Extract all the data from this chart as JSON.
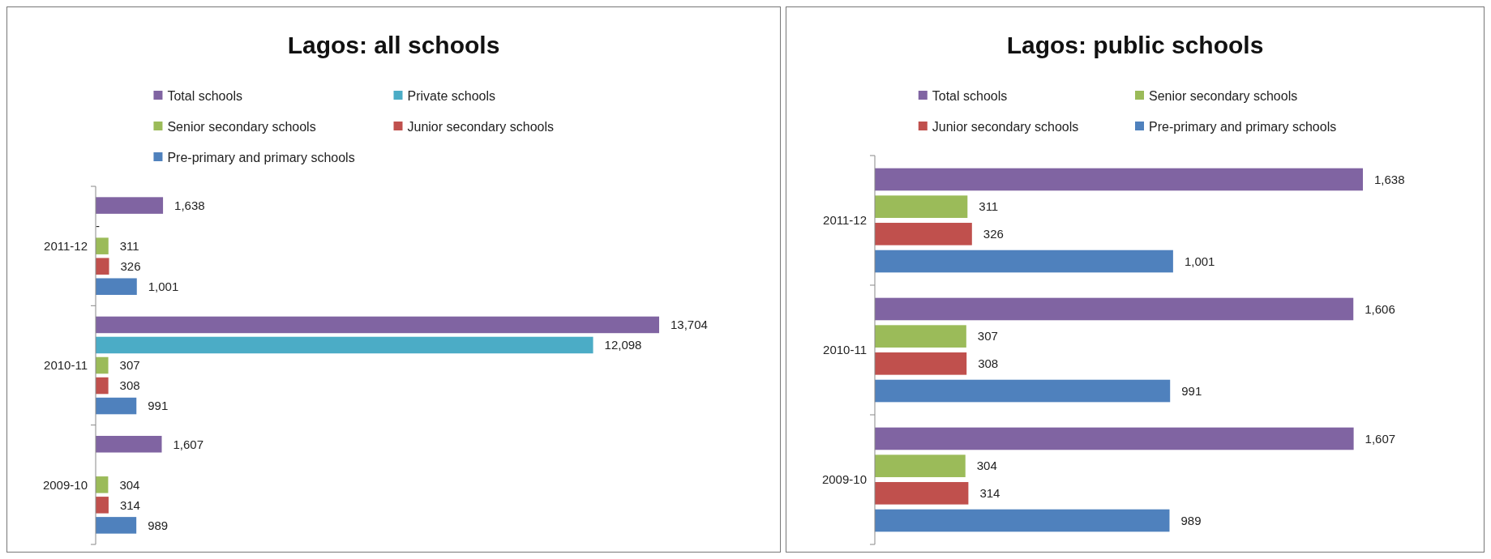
{
  "chart_data": [
    {
      "type": "bar",
      "orientation": "horizontal",
      "title": "Lagos: all schools",
      "categories": [
        "2011-12",
        "2010-11",
        "2009-10"
      ],
      "legend": "top",
      "series": [
        {
          "name": "Total schools",
          "color": "#8064a2",
          "values": [
            1638,
            13704,
            1607
          ],
          "value_labels": [
            "1,638",
            "13,704",
            "1,607"
          ]
        },
        {
          "name": "Private schools",
          "color": "#4bacc6",
          "values": [
            null,
            12098,
            null
          ],
          "value_labels": [
            "-",
            "12,098",
            null
          ]
        },
        {
          "name": "Senior secondary schools",
          "color": "#9bbb59",
          "values": [
            311,
            307,
            304
          ],
          "value_labels": [
            "311",
            "307",
            "304"
          ]
        },
        {
          "name": "Junior secondary schools",
          "color": "#c0504d",
          "values": [
            326,
            308,
            314
          ],
          "value_labels": [
            "326",
            "308",
            "314"
          ]
        },
        {
          "name": "Pre-primary and primary schools",
          "color": "#4f81bd",
          "values": [
            1001,
            991,
            989
          ],
          "value_labels": [
            "1,001",
            "991",
            "989"
          ]
        }
      ]
    },
    {
      "type": "bar",
      "orientation": "horizontal",
      "title": "Lagos: public schools",
      "categories": [
        "2011-12",
        "2010-11",
        "2009-10"
      ],
      "legend": "top",
      "series": [
        {
          "name": "Total schools",
          "color": "#8064a2",
          "values": [
            1638,
            1606,
            1607
          ],
          "value_labels": [
            "1,638",
            "1,606",
            "1,607"
          ]
        },
        {
          "name": "Senior secondary schools",
          "color": "#9bbb59",
          "values": [
            311,
            307,
            304
          ],
          "value_labels": [
            "311",
            "307",
            "304"
          ]
        },
        {
          "name": "Junior secondary schools",
          "color": "#c0504d",
          "values": [
            326,
            308,
            314
          ],
          "value_labels": [
            "326",
            "308",
            "314"
          ]
        },
        {
          "name": "Pre-primary and primary schools",
          "color": "#4f81bd",
          "values": [
            1001,
            991,
            989
          ],
          "value_labels": [
            "1,001",
            "991",
            "989"
          ]
        }
      ]
    }
  ]
}
